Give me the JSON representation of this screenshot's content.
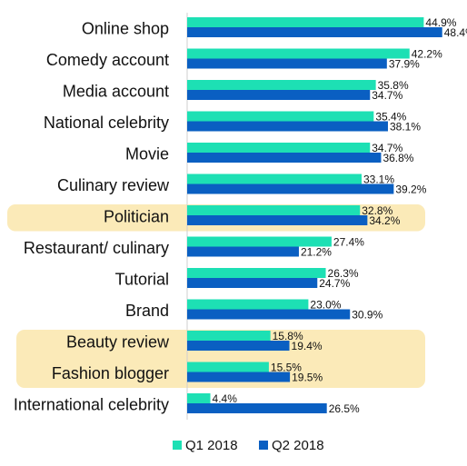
{
  "chart_data": {
    "type": "bar",
    "orientation": "horizontal",
    "title": "",
    "xlabel": "",
    "ylabel": "",
    "xlim": [
      0,
      50
    ],
    "grid": false,
    "legend_position": "bottom",
    "categories": [
      "Online shop",
      "Comedy account",
      "Media account",
      "National celebrity",
      "Movie",
      "Culinary review",
      "Politician",
      "Restaurant/ culinary",
      "Tutorial",
      "Brand",
      "Beauty review",
      "Fashion blogger",
      "International celebrity"
    ],
    "series": [
      {
        "name": "Q1 2018",
        "color": "#1de0b4",
        "values": [
          44.9,
          42.2,
          35.8,
          35.4,
          34.7,
          33.1,
          32.8,
          27.4,
          26.3,
          23.0,
          15.8,
          15.5,
          4.4
        ],
        "labels": [
          "44.9%",
          "42.2%",
          "35.8%",
          "35.4%",
          "34.7%",
          "33.1%",
          "32.8%",
          "27.4%",
          "26.3%",
          "23.0%",
          "15.8%",
          "15.5%",
          "4.4%"
        ]
      },
      {
        "name": "Q2 2018",
        "color": "#0a5fc2",
        "values": [
          48.4,
          37.9,
          34.7,
          38.1,
          36.8,
          39.2,
          34.2,
          21.2,
          24.7,
          30.9,
          19.4,
          19.5,
          26.5
        ],
        "labels": [
          "48.4%",
          "37.9%",
          "34.7%",
          "38.1%",
          "36.8%",
          "39.2%",
          "34.2%",
          "21.2%",
          "24.7%",
          "30.9%",
          "19.4%",
          "19.5%",
          "26.5%"
        ]
      }
    ],
    "highlighted_categories": [
      "Politician",
      "Beauty review",
      "Fashion blogger"
    ],
    "highlight_color": "#fbeab8"
  }
}
